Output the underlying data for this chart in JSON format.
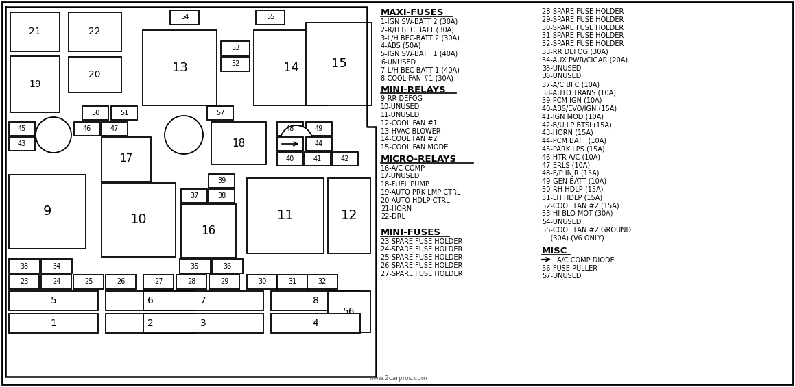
{
  "bg_color": "#ffffff",
  "border_color": "#000000",
  "maxi_fuses_title": "MAXI-FUSES",
  "maxi_fuses": [
    "1-IGN SW-BATT 2 (30A)",
    "2-R/H BEC BATT (30A)",
    "3-L/H BEC-BATT 2 (30A)",
    "4-ABS (50A)",
    "5-IGN SW-BATT 1 (40A)",
    "6-UNUSED",
    "7-L/H BEC BATT 1 (40A)",
    "8-COOL FAN #1 (30A)"
  ],
  "mini_relays_title": "MINI-RELAYS",
  "mini_relays": [
    "9-RR DEFOG",
    "10-UNUSED",
    "11-UNUSED",
    "12-COOL FAN #1",
    "13-HVAC BLOWER",
    "14-COOL FAN #2",
    "15-COOL FAN MODE"
  ],
  "micro_relays_title": "MICRO-RELAYS",
  "micro_relays": [
    "16-A/C COMP",
    "17-UNUSED",
    "18-FUEL PUMP",
    "19-AUTO PRK LMP CTRL",
    "20-AUTO HDLP CTRL",
    "21-HORN",
    "22-DRL"
  ],
  "mini_fuses_title": "MINI-FUSES",
  "mini_fuses": [
    "23-SPARE FUSE HOLDER",
    "24-SPARE FUSE HOLDER",
    "25-SPARE FUSE HOLDER",
    "26-SPARE FUSE HOLDER",
    "27-SPARE FUSE HOLDER"
  ],
  "right_col": [
    "28-SPARE FUSE HOLDER",
    "29-SPARE FUSE HOLDER",
    "30-SPARE FUSE HOLDER",
    "31-SPARE FUSE HOLDER",
    "32-SPARE FUSE HOLDER",
    "33-RR DEFOG (30A)",
    "34-AUX PWR/CIGAR (20A)",
    "35-UNUSED",
    "36-UNUSED",
    "37-A/C BFC (10A)",
    "38-AUTO TRANS (10A)",
    "39-PCM IGN (10A)",
    "40-ABS/EVO/IGN (15A)",
    "41-IGN MOD (10A)",
    "42-B/U LP BTSI (15A)",
    "43-HORN (15A)",
    "44-PCM BATT (10A)",
    "45-PARK LPS (15A)",
    "46-HTR-A/C (10A)",
    "47-ERLS (10A)",
    "48-F/P INJR (15A)",
    "49-GEN BATT (10A)",
    "50-RH HDLP (15A)",
    "51-LH HDLP (15A)",
    "52-COOL FAN #2 (15A)",
    "53-HI BLO MOT (30A)",
    "54-UNUSED",
    "55-COOL FAN #2 GROUND",
    "    (30A) (V6 ONLY)"
  ],
  "misc_title": "MISC",
  "misc_items": [
    "56-FUSE PULLER",
    "57-UNUSED"
  ],
  "misc_diode": "A/C COMP DIODE",
  "source": "www.2carpros.com"
}
